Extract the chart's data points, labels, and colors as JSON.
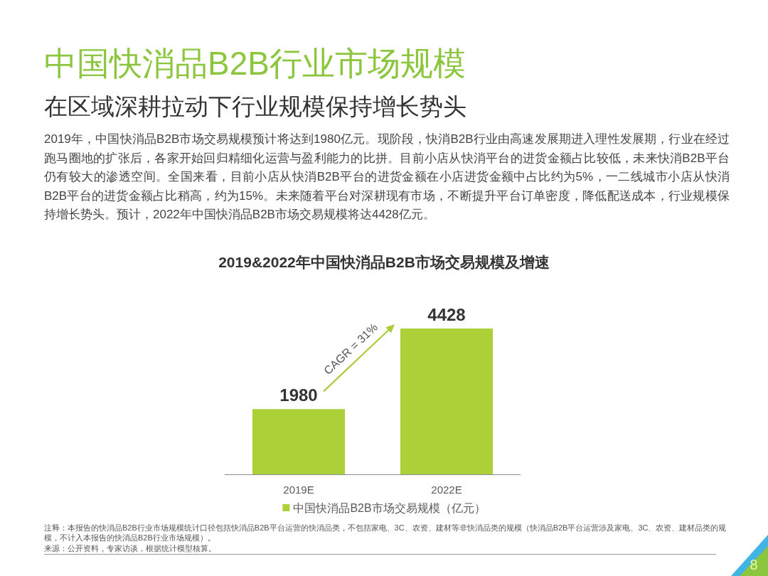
{
  "chart_data": {
    "type": "bar",
    "title": "中国快消品B2B行业市场规模",
    "subtitle": "在区域深耕拉动下行业规模保持增长势头",
    "categories": [
      "2019E",
      "2022E"
    ],
    "series": [
      {
        "name": "中国快消品B2B市场交易规模（亿元）",
        "color": "#acd037",
        "values": [
          1980,
          4428
        ]
      }
    ],
    "data_labels": true,
    "legend": "bottom",
    "tick_labels": "x",
    "annotations": [
      "2019年，中国快消品B2B市场交易规模预计将达到1980亿元。现阶段，快消B2B行业由高速发展期进入理性发展期，行业在经过跑马圈地的扩张后，各家开始回归精细化运营与盈利能力的比拼。目前小店从快消平台的进货金额占比较低，未来快消B2B平台仍有较大的渗透空间。全国来看，目前小店从快消B2B平台的进货金额在小店进货金额中占比约为5%，一二线城市小店从快消B2B平台的进货金额占比稍高，约为15%。未来随着平台对深耕现有市场，不断提升平台订单密度，降低配送成本，行业规模保持增长势头。预计，2022年中国快消品B2B市场交易规模将达4428亿元。",
      "2019&2022年中国快消品B2B市场交易规模及增速",
      "CAGR = 31%",
      "注释：本报告的快消品B2B行业市场规模统计口径包括快消品B2B平台运营的快消品类，不包括家电、3C、农资、建材等非快消品类的规模（快消品B2B平台运营涉及家电、3C、农资、建材品类的规模，不计入本报告的快消品B2B行业市场规模）。",
      "来源：公开资料，专家访谈，根据统计模型核算。",
      "8"
    ]
  }
}
